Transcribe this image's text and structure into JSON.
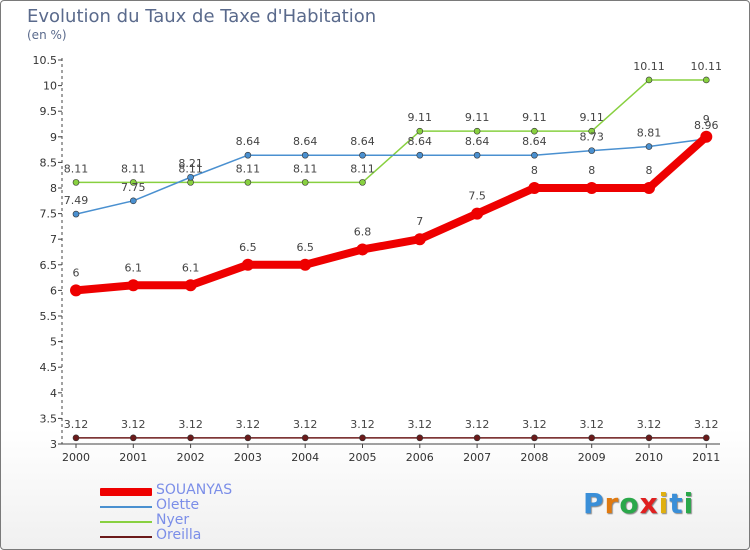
{
  "chart_data": {
    "type": "line",
    "title": "Evolution du Taux de Taxe d'Habitation",
    "subtitle": "(en %)",
    "categories": [
      "2000",
      "2001",
      "2002",
      "2003",
      "2004",
      "2005",
      "2006",
      "2007",
      "2008",
      "2009",
      "2010",
      "2011"
    ],
    "ylim": [
      3,
      10.5
    ],
    "yticks": [
      "3",
      "3.5",
      "4",
      "4.5",
      "5",
      "5.5",
      "6",
      "6.5",
      "7",
      "7.5",
      "8",
      "8.5",
      "9",
      "9.5",
      "10",
      "10.5"
    ],
    "grid": false,
    "series": [
      {
        "name": "SOUANYAS",
        "color": "#ee0000",
        "values": [
          6,
          6.1,
          6.1,
          6.5,
          6.5,
          6.8,
          7,
          7.5,
          8,
          8,
          8,
          9
        ],
        "labels": [
          "6",
          "6.1",
          "6.1",
          "6.5",
          "6.5",
          "6.8",
          "7",
          "7.5",
          "8",
          "8",
          "8",
          "9"
        ]
      },
      {
        "name": "Olette",
        "color": "#4a90d0",
        "values": [
          7.49,
          7.75,
          8.21,
          8.64,
          8.64,
          8.64,
          8.64,
          8.64,
          8.64,
          8.73,
          8.81,
          8.96
        ],
        "labels": [
          "7.49",
          "7.75",
          "8.21",
          "8.64",
          "8.64",
          "8.64",
          "8.64",
          "8.64",
          "8.64",
          "8.73",
          "8.81",
          "8.96"
        ]
      },
      {
        "name": "Nyer",
        "color": "#88d040",
        "values": [
          8.11,
          8.11,
          8.11,
          8.11,
          8.11,
          8.11,
          9.11,
          9.11,
          9.11,
          9.11,
          10.11,
          10.11
        ],
        "labels": [
          "8.11",
          "8.11",
          "8.11",
          "8.11",
          "8.11",
          "8.11",
          "9.11",
          "9.11",
          "9.11",
          "9.11",
          "10.11",
          "10.11"
        ]
      },
      {
        "name": "Oreilla",
        "color": "#6b1a1a",
        "values": [
          3.12,
          3.12,
          3.12,
          3.12,
          3.12,
          3.12,
          3.12,
          3.12,
          3.12,
          3.12,
          3.12,
          3.12
        ],
        "labels": [
          "3.12",
          "3.12",
          "3.12",
          "3.12",
          "3.12",
          "3.12",
          "3.12",
          "3.12",
          "3.12",
          "3.12",
          "3.12",
          "3.12"
        ]
      }
    ]
  },
  "legend": {
    "items": [
      {
        "label": "SOUANYAS",
        "color": "#ee0000"
      },
      {
        "label": "Olette",
        "color": "#4a90d0"
      },
      {
        "label": "Nyer",
        "color": "#88d040"
      },
      {
        "label": "Oreilla",
        "color": "#6b1a1a"
      }
    ]
  },
  "logo": {
    "letters": [
      "P",
      "r",
      "o",
      "x",
      "i",
      "t",
      "i"
    ],
    "colors": [
      "#3a8fd8",
      "#e07a10",
      "#2aa84a",
      "#e02020",
      "#e0b010",
      "#3a8fd8",
      "#2aa84a"
    ]
  }
}
